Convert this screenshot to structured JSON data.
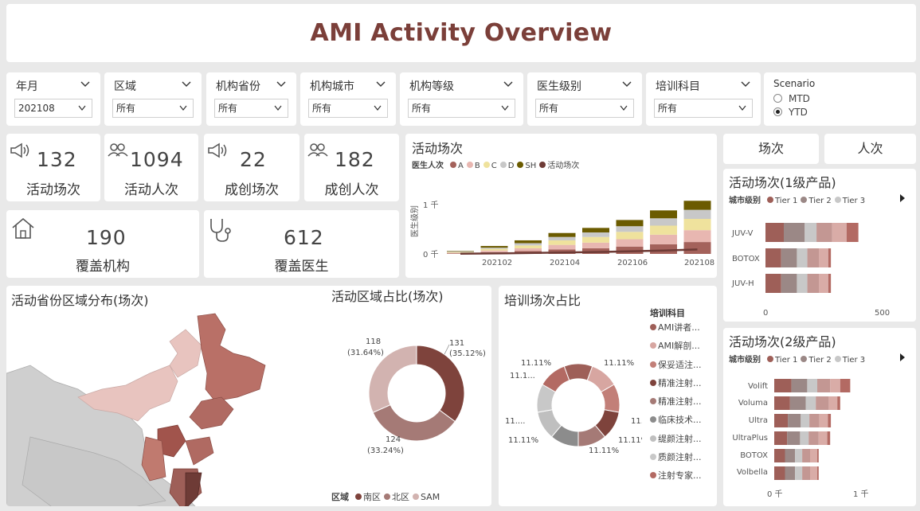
{
  "title": "AMI Activity Overview",
  "filters": [
    {
      "label": "年月",
      "value": "202108"
    },
    {
      "label": "区域",
      "value": "所有"
    },
    {
      "label": "机构省份",
      "value": "所有"
    },
    {
      "label": "机构城市",
      "value": "所有"
    },
    {
      "label": "机构等级",
      "value": "所有"
    },
    {
      "label": "医生级别",
      "value": "所有"
    },
    {
      "label": "培训科目",
      "value": "所有"
    }
  ],
  "scenario": {
    "title": "Scenario",
    "options": [
      "MTD",
      "YTD"
    ],
    "selected": "YTD"
  },
  "kpis": [
    {
      "value": "132",
      "label": "活动场次",
      "icon": "megaphone-icon"
    },
    {
      "value": "1094",
      "label": "活动人次",
      "icon": "people-icon"
    },
    {
      "value": "22",
      "label": "成创场次",
      "icon": "megaphone-icon"
    },
    {
      "value": "182",
      "label": "成创人次",
      "icon": "people-icon"
    },
    {
      "value": "190",
      "label": "覆盖机构",
      "icon": "house-icon"
    },
    {
      "value": "612",
      "label": "覆盖医生",
      "icon": "stethoscope-icon"
    }
  ],
  "tabs": [
    "场次",
    "人次"
  ],
  "activity_chart": {
    "title": "活动场次",
    "legend_title": "医生人次",
    "legend": [
      "A",
      "B",
      "C",
      "D",
      "SH",
      "活动场次"
    ],
    "y_axis_label": "医生级别",
    "y_ticks": [
      "1 千",
      "0 千"
    ],
    "x_ticks": [
      "202102",
      "202104",
      "202106",
      "202108"
    ]
  },
  "product1": {
    "title": "活动场次(1级产品)",
    "legend_title": "城市级别",
    "legend": [
      "Tier 1",
      "Tier 2",
      "Tier 3"
    ],
    "categories": [
      "JUV-V",
      "BOTOX",
      "JUV-H"
    ],
    "x_ticks": [
      "0",
      "500"
    ]
  },
  "product2": {
    "title": "活动场次(2级产品)",
    "legend_title": "城市级别",
    "legend": [
      "Tier 1",
      "Tier 2",
      "Tier 3"
    ],
    "categories": [
      "Volift",
      "Voluma",
      "Ultra",
      "UltraPlus",
      "BOTOX",
      "Volbella"
    ],
    "x_ticks": [
      "0 千",
      "1 千"
    ]
  },
  "map_title": "活动省份区域分布(场次)",
  "region_donut": {
    "title": "活动区域占比(场次)",
    "legend_title": "区域",
    "legend": [
      "南区",
      "北区",
      "SAM"
    ],
    "labels": [
      {
        "value": "131",
        "pct": "(35.12%)"
      },
      {
        "value": "124",
        "pct": "(33.24%)"
      },
      {
        "value": "118",
        "pct": "(31.64%)"
      }
    ]
  },
  "training_donut": {
    "title": "培训场次占比",
    "legend_title": "培训科目",
    "legend": [
      "AMI讲者...",
      "AMI解剖...",
      "保妥适注...",
      "精准注射...",
      "精准注射...",
      "临床技术...",
      "缇颜注射...",
      "质颜注射...",
      "注射专家..."
    ],
    "labels": [
      "11.11%",
      "11.11%",
      "11.1...",
      "11...",
      "11.11%",
      "11.11%",
      "11.11%",
      "11.11%",
      "11...."
    ]
  },
  "chart_data": [
    {
      "type": "bar",
      "title": "活动场次",
      "categories": [
        "202101",
        "202102",
        "202103",
        "202104",
        "202105",
        "202106",
        "202107",
        "202108"
      ],
      "series": [
        {
          "name": "A",
          "values": [
            10,
            30,
            50,
            80,
            100,
            130,
            170,
            210
          ]
        },
        {
          "name": "B",
          "values": [
            10,
            30,
            50,
            80,
            100,
            130,
            170,
            210
          ]
        },
        {
          "name": "C",
          "values": [
            10,
            30,
            50,
            80,
            100,
            130,
            160,
            200
          ]
        },
        {
          "name": "D",
          "values": [
            10,
            20,
            40,
            60,
            80,
            100,
            130,
            160
          ]
        },
        {
          "name": "SH",
          "values": [
            10,
            30,
            50,
            70,
            80,
            110,
            140,
            160
          ]
        },
        {
          "name": "活动场次",
          "values": [
            5,
            15,
            25,
            40,
            55,
            75,
            100,
            132
          ]
        }
      ],
      "colors": [
        "#a4625b",
        "#e8b7b1",
        "#efe29d",
        "#c8c8c8",
        "#6b5b00",
        "#6e3b36"
      ],
      "ylim": [
        0,
        1400
      ]
    },
    {
      "type": "bar",
      "title": "活动场次(1级产品)",
      "categories": [
        "JUV-V",
        "BOTOX",
        "JUV-H"
      ],
      "series": [
        {
          "name": "seg1",
          "values": [
            70,
            60,
            60
          ]
        },
        {
          "name": "seg2",
          "values": [
            80,
            60,
            60
          ]
        },
        {
          "name": "seg3",
          "values": [
            45,
            40,
            40
          ]
        },
        {
          "name": "seg4",
          "values": [
            60,
            45,
            45
          ]
        },
        {
          "name": "seg5",
          "values": [
            55,
            35,
            35
          ]
        },
        {
          "name": "seg6",
          "values": [
            45,
            10,
            10
          ]
        }
      ],
      "colors": [
        "#9e5f58",
        "#9b8886",
        "#c8c8c8",
        "#c39793",
        "#d9aca7",
        "#b36a63"
      ],
      "xlim": [
        0,
        700
      ]
    },
    {
      "type": "bar",
      "title": "活动场次(2级产品)",
      "categories": [
        "Volift",
        "Voluma",
        "Ultra",
        "UltraPlus",
        "BOTOX",
        "Volbella"
      ],
      "series": [
        {
          "name": "seg1",
          "values": [
            120,
            110,
            95,
            90,
            75,
            75
          ]
        },
        {
          "name": "seg2",
          "values": [
            110,
            110,
            90,
            90,
            70,
            70
          ]
        },
        {
          "name": "seg3",
          "values": [
            70,
            70,
            60,
            60,
            50,
            50
          ]
        },
        {
          "name": "seg4",
          "values": [
            90,
            90,
            70,
            70,
            55,
            55
          ]
        },
        {
          "name": "seg5",
          "values": [
            70,
            60,
            60,
            60,
            50,
            50
          ]
        },
        {
          "name": "seg6",
          "values": [
            70,
            20,
            20,
            20,
            10,
            10
          ]
        }
      ],
      "colors": [
        "#9e5f58",
        "#9b8886",
        "#c8c8c8",
        "#c39793",
        "#d9aca7",
        "#b36a63"
      ],
      "xlim": [
        0,
        1000
      ]
    },
    {
      "type": "pie",
      "title": "活动区域占比(场次)",
      "categories": [
        "南区",
        "北区",
        "SAM"
      ],
      "values": [
        131,
        124,
        118
      ],
      "colors": [
        "#7e433c",
        "#a57a76",
        "#d2b3b0"
      ]
    },
    {
      "type": "pie",
      "title": "培训场次占比",
      "categories": [
        "AMI讲者...",
        "AMI解剖...",
        "保妥适注...",
        "精准注射...",
        "精准注射...",
        "临床技术...",
        "缇颜注射...",
        "质颜注射...",
        "注射专家..."
      ],
      "values": [
        11.11,
        11.11,
        11.11,
        11.11,
        11.11,
        11.11,
        11.11,
        11.11,
        11.11
      ],
      "colors": [
        "#9e5f58",
        "#d7a6a1",
        "#c27f78",
        "#7e433c",
        "#a57a76",
        "#8c8c8c",
        "#bfbfbf",
        "#c8c8c8",
        "#b36a63"
      ]
    }
  ]
}
